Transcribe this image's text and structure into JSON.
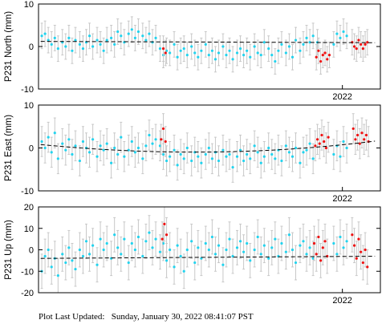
{
  "footer": {
    "label": "Plot Last Updated:",
    "timestamp": "Sunday, January 30, 2022 08:41:07 PST"
  },
  "colors": {
    "main_points": "#22d3ee",
    "recent_points": "#ee1111",
    "error_bars": "#c8c8c8",
    "trend_line": "#000000"
  },
  "chart_data": [
    {
      "type": "scatter",
      "name": "north",
      "ylabel": "P231 North (mm)",
      "ylim": [
        -10,
        10
      ],
      "yticks": [
        "10",
        "0",
        "-10"
      ],
      "xlim": [
        2019.2,
        2022.35
      ],
      "xtick_labels": [
        "2022"
      ],
      "xtick_values": [
        2022.0
      ],
      "error_bar_mm": 3.0,
      "trend": {
        "x": [
          2019.22,
          2022.3
        ],
        "y": [
          1.2,
          0.9
        ]
      },
      "main_points": {
        "x": [
          2019.23,
          2019.26,
          2019.29,
          2019.32,
          2019.35,
          2019.38,
          2019.42,
          2019.45,
          2019.48,
          2019.51,
          2019.54,
          2019.58,
          2019.61,
          2019.64,
          2019.67,
          2019.7,
          2019.74,
          2019.77,
          2019.8,
          2019.83,
          2019.87,
          2019.9,
          2019.93,
          2019.96,
          2019.99,
          2020.03,
          2020.06,
          2020.09,
          2020.12,
          2020.16,
          2020.19,
          2020.22,
          2020.25,
          2020.28,
          2020.32,
          2020.35,
          2020.38,
          2020.41,
          2020.45,
          2020.48,
          2020.51,
          2020.54,
          2020.57,
          2020.61,
          2020.64,
          2020.67,
          2020.7,
          2020.74,
          2020.77,
          2020.8,
          2020.83,
          2020.86,
          2020.9,
          2020.93,
          2020.96,
          2020.99,
          2021.03,
          2021.06,
          2021.09,
          2021.12,
          2021.15,
          2021.19,
          2021.22,
          2021.25,
          2021.28,
          2021.32,
          2021.35,
          2021.38,
          2021.41,
          2021.44,
          2021.48,
          2021.51,
          2021.54,
          2021.57,
          2021.61,
          2021.64,
          2021.67,
          2021.7,
          2021.73,
          2021.77,
          2021.92,
          2021.95,
          2021.98,
          2022.01,
          2022.04
        ],
        "y": [
          2.5,
          3.0,
          1.5,
          0.5,
          2.0,
          -0.5,
          1.0,
          0.0,
          2.0,
          -1.0,
          1.5,
          0.5,
          -0.5,
          1.0,
          2.5,
          0.0,
          1.5,
          0.5,
          -1.0,
          1.5,
          2.0,
          0.5,
          3.5,
          2.5,
          1.0,
          3.0,
          4.0,
          2.0,
          3.5,
          2.5,
          1.5,
          3.0,
          1.0,
          2.0,
          -0.5,
          -2.0,
          -1.0,
          -1.5,
          0.5,
          -2.5,
          -1.0,
          -0.5,
          -2.0,
          0.0,
          -1.5,
          -2.5,
          -1.0,
          0.5,
          -2.0,
          -1.0,
          -3.0,
          -1.5,
          0.0,
          -2.0,
          -1.0,
          -3.0,
          -1.5,
          -0.5,
          -2.0,
          -1.0,
          -2.5,
          0.0,
          -1.5,
          -2.0,
          1.0,
          -0.5,
          -2.0,
          -3.5,
          -1.0,
          0.5,
          -1.5,
          0.0,
          -2.5,
          1.5,
          -1.0,
          0.5,
          2.0,
          1.0,
          2.5,
          1.0,
          0.5,
          3.0,
          2.0,
          3.5,
          2.5
        ]
      },
      "recent_points": {
        "x": [
          2020.35,
          2020.37,
          2021.76,
          2021.78,
          2021.8,
          2021.82,
          2021.84,
          2021.86,
          2021.88,
          2022.09,
          2022.11,
          2022.13,
          2022.15,
          2022.17,
          2022.19,
          2022.21,
          2022.23
        ],
        "y": [
          -0.5,
          -1.5,
          -2.5,
          -1.0,
          -3.5,
          -2.0,
          -1.5,
          -3.0,
          -2.0,
          1.0,
          0.0,
          -0.5,
          1.5,
          0.5,
          -0.5,
          0.5,
          1.0
        ]
      }
    },
    {
      "type": "scatter",
      "name": "east",
      "ylabel": "P231 East (mm)",
      "ylim": [
        -10,
        10
      ],
      "yticks": [
        "10",
        "0",
        "-10"
      ],
      "xlim": [
        2019.2,
        2022.35
      ],
      "xtick_labels": [
        "2022"
      ],
      "xtick_values": [
        2022.0
      ],
      "error_bar_mm": 3.5,
      "trend": {
        "x": [
          2019.22,
          2022.3
        ],
        "y": [
          0.8,
          1.6
        ]
      },
      "trend_mid": {
        "x": 2020.8,
        "y": -1.5
      },
      "main_points": {
        "x": [
          2019.23,
          2019.26,
          2019.29,
          2019.32,
          2019.35,
          2019.38,
          2019.42,
          2019.45,
          2019.48,
          2019.51,
          2019.54,
          2019.58,
          2019.61,
          2019.64,
          2019.67,
          2019.7,
          2019.74,
          2019.77,
          2019.8,
          2019.83,
          2019.87,
          2019.9,
          2019.93,
          2019.96,
          2019.99,
          2020.03,
          2020.06,
          2020.09,
          2020.12,
          2020.16,
          2020.19,
          2020.22,
          2020.25,
          2020.28,
          2020.32,
          2020.35,
          2020.38,
          2020.41,
          2020.45,
          2020.48,
          2020.51,
          2020.54,
          2020.57,
          2020.61,
          2020.64,
          2020.67,
          2020.7,
          2020.74,
          2020.77,
          2020.8,
          2020.83,
          2020.86,
          2020.9,
          2020.93,
          2020.96,
          2020.99,
          2021.03,
          2021.06,
          2021.09,
          2021.12,
          2021.15,
          2021.19,
          2021.22,
          2021.25,
          2021.28,
          2021.32,
          2021.35,
          2021.38,
          2021.41,
          2021.44,
          2021.48,
          2021.51,
          2021.54,
          2021.57,
          2021.61,
          2021.64,
          2021.67,
          2021.7,
          2021.73,
          2021.92,
          2021.95,
          2021.98,
          2022.01,
          2022.04
        ],
        "y": [
          1.5,
          0.0,
          2.5,
          -1.0,
          3.5,
          -2.5,
          1.0,
          -0.5,
          2.0,
          -1.5,
          0.5,
          -3.0,
          1.5,
          0.0,
          -1.0,
          2.0,
          -2.0,
          0.5,
          -0.5,
          1.0,
          -3.5,
          0.0,
          -1.5,
          2.5,
          -2.0,
          -0.5,
          1.5,
          -1.0,
          0.0,
          -2.5,
          0.5,
          3.0,
          1.0,
          2.0,
          0.5,
          -1.5,
          -3.0,
          -2.0,
          -0.5,
          -4.0,
          -1.5,
          -2.5,
          0.0,
          -3.0,
          -1.0,
          -2.0,
          -3.5,
          -1.5,
          0.0,
          -2.5,
          -1.0,
          -3.0,
          -0.5,
          -2.0,
          -1.5,
          -4.5,
          -2.0,
          -0.5,
          -3.0,
          -1.5,
          -2.5,
          0.5,
          -1.0,
          -3.5,
          -2.0,
          0.0,
          -1.5,
          -2.5,
          -0.5,
          -3.0,
          0.5,
          -1.0,
          -2.0,
          0.0,
          -3.5,
          -1.0,
          -0.5,
          1.0,
          -2.5,
          -1.5,
          0.5,
          -2.0,
          1.5,
          0.0
        ]
      },
      "recent_points": {
        "x": [
          2020.33,
          2020.35,
          2020.37,
          2021.75,
          2021.77,
          2021.79,
          2021.81,
          2021.83,
          2021.85,
          2021.87,
          2022.1,
          2022.12,
          2022.14,
          2022.16,
          2022.18,
          2022.2,
          2022.22,
          2022.24
        ],
        "y": [
          2.0,
          4.5,
          1.5,
          0.5,
          2.0,
          1.0,
          3.0,
          1.5,
          0.0,
          2.5,
          4.5,
          2.0,
          3.0,
          1.0,
          3.5,
          2.0,
          3.0,
          1.5
        ]
      }
    },
    {
      "type": "scatter",
      "name": "up",
      "ylabel": "P231 Up (mm)",
      "ylim": [
        -20,
        20
      ],
      "yticks": [
        "20",
        "10",
        "0",
        "-10",
        "-20"
      ],
      "xlim": [
        2019.2,
        2022.35
      ],
      "xtick_labels": [
        "2022"
      ],
      "xtick_values": [
        2022.0
      ],
      "error_bar_mm": 8.0,
      "trend": {
        "x": [
          2019.22,
          2022.3
        ],
        "y": [
          -4.0,
          -3.0
        ]
      },
      "main_points": {
        "x": [
          2019.23,
          2019.26,
          2019.29,
          2019.32,
          2019.35,
          2019.38,
          2019.42,
          2019.45,
          2019.48,
          2019.51,
          2019.54,
          2019.58,
          2019.61,
          2019.64,
          2019.67,
          2019.7,
          2019.74,
          2019.77,
          2019.8,
          2019.83,
          2019.87,
          2019.9,
          2019.93,
          2019.96,
          2019.99,
          2020.03,
          2020.06,
          2020.09,
          2020.12,
          2020.16,
          2020.19,
          2020.22,
          2020.25,
          2020.28,
          2020.32,
          2020.35,
          2020.38,
          2020.41,
          2020.45,
          2020.48,
          2020.51,
          2020.54,
          2020.57,
          2020.61,
          2020.64,
          2020.67,
          2020.7,
          2020.74,
          2020.77,
          2020.8,
          2020.83,
          2020.86,
          2020.9,
          2020.93,
          2020.96,
          2020.99,
          2021.03,
          2021.06,
          2021.09,
          2021.12,
          2021.15,
          2021.19,
          2021.22,
          2021.25,
          2021.28,
          2021.32,
          2021.35,
          2021.38,
          2021.41,
          2021.44,
          2021.48,
          2021.51,
          2021.54,
          2021.57,
          2021.61,
          2021.64,
          2021.67,
          2021.7,
          2021.73,
          2021.92,
          2021.95,
          2021.98,
          2022.01,
          2022.04
        ],
        "y": [
          -10.0,
          -3.0,
          0.0,
          -8.0,
          -4.0,
          -12.0,
          -2.0,
          -6.0,
          1.0,
          -5.0,
          -9.0,
          0.0,
          -3.0,
          4.0,
          -2.0,
          2.0,
          -7.0,
          5.0,
          0.0,
          3.0,
          -4.0,
          7.0,
          1.0,
          -2.0,
          5.0,
          -6.0,
          3.0,
          0.0,
          6.0,
          -3.0,
          4.0,
          8.0,
          1.0,
          5.0,
          -1.0,
          3.0,
          -5.0,
          0.0,
          -8.0,
          2.0,
          -3.0,
          -10.0,
          0.0,
          4.0,
          -6.0,
          1.0,
          -4.0,
          3.0,
          0.0,
          6.0,
          -2.0,
          2.0,
          -7.0,
          0.0,
          5.0,
          -3.0,
          1.0,
          4.0,
          -1.0,
          3.0,
          -5.0,
          0.0,
          6.0,
          -2.0,
          2.0,
          -4.0,
          1.0,
          5.0,
          -3.0,
          3.0,
          -1.0,
          7.0,
          0.0,
          -6.0,
          2.0,
          4.0,
          -2.0,
          1.0,
          -4.0,
          3.0,
          -2.0,
          6.0,
          1.0,
          4.0
        ]
      },
      "recent_points": {
        "x": [
          2020.34,
          2020.36,
          2020.38,
          2021.74,
          2021.76,
          2021.78,
          2021.8,
          2021.82,
          2021.84,
          2021.86,
          2022.09,
          2022.11,
          2022.13,
          2022.15,
          2022.17,
          2022.19,
          2022.21,
          2022.23
        ],
        "y": [
          5.0,
          12.0,
          7.0,
          3.0,
          -2.0,
          6.0,
          -5.0,
          1.0,
          4.0,
          -3.0,
          7.0,
          2.0,
          -4.0,
          5.0,
          -1.0,
          -6.0,
          0.0,
          -8.0
        ]
      }
    }
  ]
}
